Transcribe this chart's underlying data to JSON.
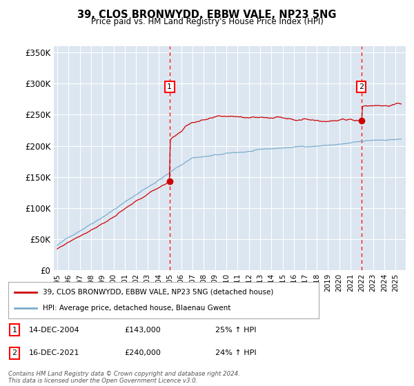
{
  "title1": "39, CLOS BRONWYDD, EBBW VALE, NP23 5NG",
  "title2": "Price paid vs. HM Land Registry's House Price Index (HPI)",
  "ylim": [
    0,
    360000
  ],
  "yticks": [
    0,
    50000,
    100000,
    150000,
    200000,
    250000,
    300000,
    350000
  ],
  "ytick_labels": [
    "£0",
    "£50K",
    "£100K",
    "£150K",
    "£200K",
    "£250K",
    "£300K",
    "£350K"
  ],
  "plot_bg": "#dce6f1",
  "line1_color": "#cc0000",
  "line2_color": "#7aadcc",
  "marker1_date": 2004.96,
  "marker1_price": 143000,
  "marker2_date": 2021.96,
  "marker2_price": 240000,
  "legend_line1": "39, CLOS BRONWYDD, EBBW VALE, NP23 5NG (detached house)",
  "legend_line2": "HPI: Average price, detached house, Blaenau Gwent",
  "ann1_date": "14-DEC-2004",
  "ann1_price": "£143,000",
  "ann1_hpi": "25% ↑ HPI",
  "ann2_date": "16-DEC-2021",
  "ann2_price": "£240,000",
  "ann2_hpi": "24% ↑ HPI",
  "footer": "Contains HM Land Registry data © Crown copyright and database right 2024.\nThis data is licensed under the Open Government Licence v3.0."
}
